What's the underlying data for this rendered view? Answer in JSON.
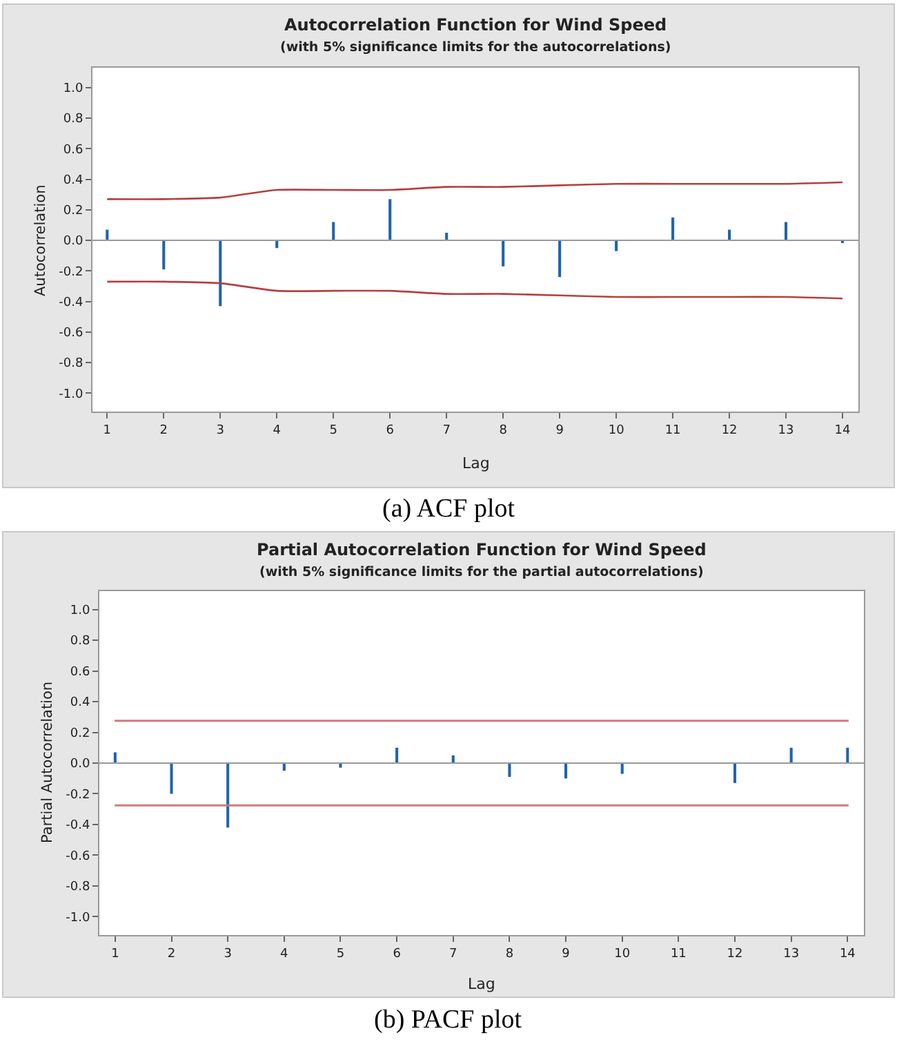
{
  "chart_data": [
    {
      "type": "bar",
      "title": "Autocorrelation Function for Wind Speed",
      "subtitle": "(with 5% significance limits for the autocorrelations)",
      "xlabel": "Lag",
      "ylabel": "Autocorrelation",
      "annotations": [
        "(a) ACF plot"
      ],
      "x": [
        1,
        2,
        3,
        4,
        5,
        6,
        7,
        8,
        9,
        10,
        11,
        12,
        13,
        14
      ],
      "series": [
        {
          "color": "#1f63b0",
          "values": [
            0.07,
            -0.19,
            -0.43,
            -0.05,
            0.12,
            0.27,
            0.05,
            -0.17,
            -0.24,
            -0.07,
            0.15,
            0.07,
            0.12,
            -0.01
          ]
        },
        {
          "type": "line",
          "color": "#b5403f",
          "values": [
            0.27,
            0.27,
            0.28,
            0.33,
            0.33,
            0.33,
            0.35,
            0.35,
            0.36,
            0.37,
            0.37,
            0.37,
            0.37,
            0.38
          ]
        },
        {
          "type": "line",
          "color": "#b5403f",
          "values": [
            -0.27,
            -0.27,
            -0.28,
            -0.33,
            -0.33,
            -0.33,
            -0.35,
            -0.35,
            -0.36,
            -0.37,
            -0.37,
            -0.37,
            -0.37,
            -0.38
          ]
        }
      ],
      "ref_lines": [
        {
          "axis": "y",
          "value": 0,
          "color": "#999999"
        }
      ],
      "xlim": [
        0.74,
        14.28
      ],
      "xticks": [
        1,
        2,
        3,
        4,
        5,
        6,
        7,
        8,
        9,
        10,
        11,
        12,
        13,
        14
      ],
      "ylim": [
        -1.12,
        1.13
      ],
      "yticks": [
        {
          "value": -1,
          "label": "-1.0"
        },
        {
          "value": -0.8,
          "label": "-0.8"
        },
        {
          "value": -0.6,
          "label": "-0.6"
        },
        {
          "value": -0.4,
          "label": "-0.4"
        },
        {
          "value": -0.2,
          "label": "-0.2"
        },
        {
          "value": 0,
          "label": "0.0"
        },
        {
          "value": 0.2,
          "label": "0.2"
        },
        {
          "value": 0.4,
          "label": "0.4"
        },
        {
          "value": 0.6,
          "label": "0.6"
        },
        {
          "value": 0.8,
          "label": "0.8"
        },
        {
          "value": 1,
          "label": "1.0"
        }
      ]
    },
    {
      "type": "bar",
      "title": "Partial Autocorrelation Function for Wind Speed",
      "subtitle": "(with 5% significance limits for the partial autocorrelations)",
      "xlabel": "Lag",
      "ylabel": "Partial Autocorrelation",
      "annotations": [
        "(b) PACF plot"
      ],
      "x": [
        1,
        2,
        3,
        4,
        5,
        6,
        7,
        8,
        9,
        10,
        11,
        12,
        13,
        14
      ],
      "series": [
        {
          "color": "#1f63b0",
          "values": [
            0.07,
            -0.2,
            -0.42,
            -0.05,
            -0.03,
            0.1,
            0.05,
            -0.09,
            -0.1,
            -0.07,
            0.0,
            -0.13,
            0.1,
            0.1
          ]
        }
      ],
      "ref_lines": [
        {
          "axis": "y",
          "value": 0,
          "color": "#999999"
        },
        {
          "axis": "y",
          "value": 0.275,
          "color": "#d07a7a"
        },
        {
          "axis": "y",
          "value": -0.275,
          "color": "#d07a7a"
        }
      ],
      "xlim": [
        0.72,
        14.29
      ],
      "xticks": [
        1,
        2,
        3,
        4,
        5,
        6,
        7,
        8,
        9,
        10,
        11,
        12,
        13,
        14
      ],
      "ylim": [
        -1.12,
        1.12
      ],
      "yticks": [
        {
          "value": -1,
          "label": "-1.0"
        },
        {
          "value": -0.8,
          "label": "-0.8"
        },
        {
          "value": -0.6,
          "label": "-0.6"
        },
        {
          "value": -0.4,
          "label": "-0.4"
        },
        {
          "value": -0.2,
          "label": "-0.2"
        },
        {
          "value": 0,
          "label": "0.0"
        },
        {
          "value": 0.2,
          "label": "0.2"
        },
        {
          "value": 0.4,
          "label": "0.4"
        },
        {
          "value": 0.6,
          "label": "0.6"
        },
        {
          "value": 0.8,
          "label": "0.8"
        },
        {
          "value": 1,
          "label": "1.0"
        }
      ]
    }
  ]
}
